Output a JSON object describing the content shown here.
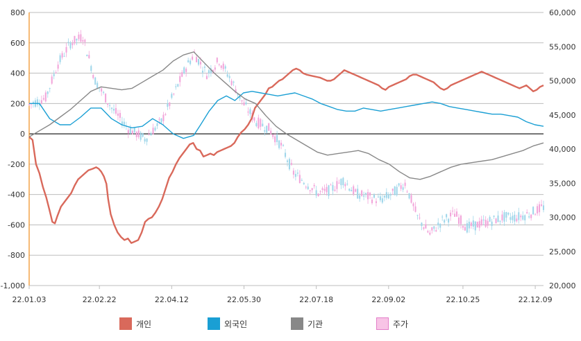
{
  "chart_data": {
    "type": "line",
    "left_axis": {
      "ticks": [
        "800",
        "600",
        "400",
        "200",
        "0",
        "-200",
        "-400",
        "-600",
        "-800",
        "-1,000"
      ],
      "range": [
        -1000,
        800
      ]
    },
    "right_axis": {
      "ticks": [
        "60,000",
        "55,000",
        "50,000",
        "45,000",
        "40,000",
        "35,000",
        "30,000",
        "25,000",
        "20,000"
      ],
      "range": [
        20000,
        60000
      ]
    },
    "x_tick_labels": [
      "22.01.03",
      "22.02.22",
      "22.04.12",
      "22.05.30",
      "22.07.18",
      "22.09.02",
      "22.10.25",
      "22.12.09"
    ],
    "x_count": 250,
    "series": [
      {
        "name": "개인",
        "axis": "left",
        "color": "#d9695b",
        "points": [
          [
            0,
            -20
          ],
          [
            4,
            -40
          ],
          [
            8,
            -200
          ],
          [
            12,
            -260
          ],
          [
            16,
            -350
          ],
          [
            20,
            -420
          ],
          [
            24,
            -510
          ],
          [
            27,
            -580
          ],
          [
            30,
            -590
          ],
          [
            33,
            -540
          ],
          [
            37,
            -480
          ],
          [
            41,
            -450
          ],
          [
            45,
            -420
          ],
          [
            49,
            -390
          ],
          [
            53,
            -340
          ],
          [
            57,
            -300
          ],
          [
            61,
            -280
          ],
          [
            65,
            -260
          ],
          [
            69,
            -240
          ],
          [
            74,
            -230
          ],
          [
            78,
            -220
          ],
          [
            81,
            -230
          ],
          [
            84,
            -250
          ],
          [
            87,
            -280
          ],
          [
            90,
            -330
          ],
          [
            92,
            -430
          ],
          [
            95,
            -530
          ],
          [
            99,
            -600
          ],
          [
            103,
            -650
          ],
          [
            107,
            -680
          ],
          [
            111,
            -700
          ],
          [
            115,
            -690
          ],
          [
            119,
            -720
          ],
          [
            123,
            -710
          ],
          [
            127,
            -700
          ],
          [
            131,
            -650
          ],
          [
            135,
            -580
          ],
          [
            139,
            -560
          ],
          [
            143,
            -550
          ],
          [
            147,
            -520
          ],
          [
            151,
            -480
          ],
          [
            155,
            -430
          ],
          [
            159,
            -360
          ],
          [
            163,
            -290
          ],
          [
            167,
            -250
          ],
          [
            171,
            -200
          ],
          [
            175,
            -160
          ],
          [
            179,
            -130
          ],
          [
            183,
            -100
          ],
          [
            187,
            -70
          ],
          [
            191,
            -60
          ],
          [
            195,
            -100
          ],
          [
            199,
            -110
          ],
          [
            203,
            -150
          ],
          [
            207,
            -140
          ],
          [
            211,
            -130
          ],
          [
            215,
            -140
          ],
          [
            219,
            -120
          ],
          [
            223,
            -110
          ],
          [
            227,
            -100
          ],
          [
            231,
            -90
          ],
          [
            235,
            -80
          ],
          [
            239,
            -60
          ],
          [
            243,
            -20
          ],
          [
            247,
            10
          ],
          [
            251,
            30
          ],
          [
            255,
            60
          ],
          [
            259,
            100
          ],
          [
            263,
            170
          ],
          [
            267,
            200
          ],
          [
            271,
            230
          ],
          [
            275,
            260
          ],
          [
            279,
            300
          ],
          [
            283,
            310
          ],
          [
            287,
            330
          ],
          [
            291,
            350
          ],
          [
            295,
            360
          ],
          [
            299,
            380
          ],
          [
            303,
            400
          ],
          [
            307,
            420
          ],
          [
            311,
            430
          ],
          [
            315,
            420
          ],
          [
            319,
            400
          ],
          [
            323,
            390
          ],
          [
            327,
            385
          ],
          [
            331,
            380
          ],
          [
            335,
            375
          ],
          [
            339,
            370
          ],
          [
            343,
            360
          ],
          [
            347,
            350
          ],
          [
            351,
            350
          ],
          [
            355,
            360
          ],
          [
            359,
            380
          ],
          [
            363,
            400
          ],
          [
            367,
            420
          ],
          [
            371,
            410
          ],
          [
            375,
            400
          ],
          [
            379,
            390
          ],
          [
            383,
            380
          ],
          [
            387,
            370
          ],
          [
            391,
            360
          ],
          [
            395,
            350
          ],
          [
            399,
            340
          ],
          [
            403,
            330
          ],
          [
            407,
            320
          ],
          [
            411,
            300
          ],
          [
            415,
            290
          ],
          [
            419,
            310
          ],
          [
            423,
            320
          ],
          [
            427,
            330
          ],
          [
            431,
            340
          ],
          [
            435,
            350
          ],
          [
            439,
            360
          ],
          [
            443,
            380
          ],
          [
            447,
            390
          ],
          [
            451,
            390
          ],
          [
            455,
            380
          ],
          [
            459,
            370
          ],
          [
            463,
            360
          ],
          [
            467,
            350
          ],
          [
            471,
            340
          ],
          [
            475,
            320
          ],
          [
            479,
            300
          ],
          [
            483,
            290
          ],
          [
            487,
            300
          ],
          [
            491,
            320
          ],
          [
            495,
            330
          ],
          [
            499,
            340
          ],
          [
            503,
            350
          ],
          [
            507,
            360
          ],
          [
            511,
            370
          ],
          [
            515,
            380
          ],
          [
            519,
            390
          ],
          [
            523,
            400
          ],
          [
            527,
            410
          ],
          [
            531,
            400
          ],
          [
            535,
            390
          ],
          [
            539,
            380
          ],
          [
            543,
            370
          ],
          [
            547,
            360
          ],
          [
            551,
            350
          ],
          [
            555,
            340
          ],
          [
            559,
            330
          ],
          [
            563,
            320
          ],
          [
            567,
            310
          ],
          [
            571,
            300
          ],
          [
            575,
            310
          ],
          [
            579,
            320
          ],
          [
            583,
            300
          ],
          [
            587,
            280
          ],
          [
            591,
            290
          ],
          [
            595,
            310
          ],
          [
            599,
            320
          ]
        ]
      },
      {
        "name": "외국인",
        "axis": "left",
        "color": "#1a9fd4",
        "points": [
          [
            0,
            200
          ],
          [
            12,
            200
          ],
          [
            24,
            100
          ],
          [
            36,
            60
          ],
          [
            48,
            60
          ],
          [
            60,
            110
          ],
          [
            72,
            170
          ],
          [
            84,
            170
          ],
          [
            96,
            100
          ],
          [
            108,
            60
          ],
          [
            120,
            40
          ],
          [
            132,
            50
          ],
          [
            144,
            100
          ],
          [
            156,
            60
          ],
          [
            168,
            0
          ],
          [
            180,
            -30
          ],
          [
            192,
            -10
          ],
          [
            200,
            60
          ],
          [
            210,
            150
          ],
          [
            220,
            220
          ],
          [
            230,
            250
          ],
          [
            240,
            220
          ],
          [
            250,
            270
          ],
          [
            260,
            280
          ],
          [
            270,
            270
          ],
          [
            280,
            260
          ],
          [
            290,
            250
          ],
          [
            300,
            260
          ],
          [
            310,
            270
          ],
          [
            320,
            250
          ],
          [
            330,
            230
          ],
          [
            340,
            200
          ],
          [
            350,
            180
          ],
          [
            360,
            160
          ],
          [
            370,
            150
          ],
          [
            380,
            150
          ],
          [
            390,
            170
          ],
          [
            400,
            160
          ],
          [
            410,
            150
          ],
          [
            420,
            160
          ],
          [
            430,
            170
          ],
          [
            440,
            180
          ],
          [
            450,
            190
          ],
          [
            460,
            200
          ],
          [
            470,
            210
          ],
          [
            480,
            200
          ],
          [
            490,
            180
          ],
          [
            500,
            170
          ],
          [
            510,
            160
          ],
          [
            520,
            150
          ],
          [
            530,
            140
          ],
          [
            540,
            130
          ],
          [
            550,
            130
          ],
          [
            560,
            120
          ],
          [
            570,
            110
          ],
          [
            580,
            80
          ],
          [
            590,
            60
          ],
          [
            600,
            50
          ]
        ]
      },
      {
        "name": "기관",
        "axis": "left",
        "color": "#888888",
        "points": [
          [
            0,
            -20
          ],
          [
            12,
            20
          ],
          [
            24,
            60
          ],
          [
            36,
            110
          ],
          [
            48,
            160
          ],
          [
            60,
            220
          ],
          [
            72,
            280
          ],
          [
            84,
            310
          ],
          [
            96,
            300
          ],
          [
            108,
            290
          ],
          [
            120,
            300
          ],
          [
            132,
            340
          ],
          [
            144,
            380
          ],
          [
            156,
            420
          ],
          [
            168,
            480
          ],
          [
            180,
            520
          ],
          [
            192,
            540
          ],
          [
            204,
            470
          ],
          [
            216,
            400
          ],
          [
            228,
            340
          ],
          [
            240,
            280
          ],
          [
            252,
            230
          ],
          [
            264,
            200
          ],
          [
            276,
            120
          ],
          [
            288,
            50
          ],
          [
            300,
            0
          ],
          [
            312,
            -40
          ],
          [
            324,
            -80
          ],
          [
            336,
            -120
          ],
          [
            348,
            -140
          ],
          [
            360,
            -130
          ],
          [
            372,
            -120
          ],
          [
            384,
            -110
          ],
          [
            396,
            -130
          ],
          [
            408,
            -170
          ],
          [
            420,
            -200
          ],
          [
            432,
            -250
          ],
          [
            444,
            -290
          ],
          [
            456,
            -300
          ],
          [
            468,
            -280
          ],
          [
            480,
            -250
          ],
          [
            492,
            -220
          ],
          [
            504,
            -200
          ],
          [
            516,
            -190
          ],
          [
            528,
            -180
          ],
          [
            540,
            -170
          ],
          [
            552,
            -150
          ],
          [
            564,
            -130
          ],
          [
            576,
            -110
          ],
          [
            588,
            -80
          ],
          [
            600,
            -60
          ]
        ]
      },
      {
        "name": "주가",
        "axis": "right",
        "color": "#f0a6d8"
      }
    ]
  }
}
